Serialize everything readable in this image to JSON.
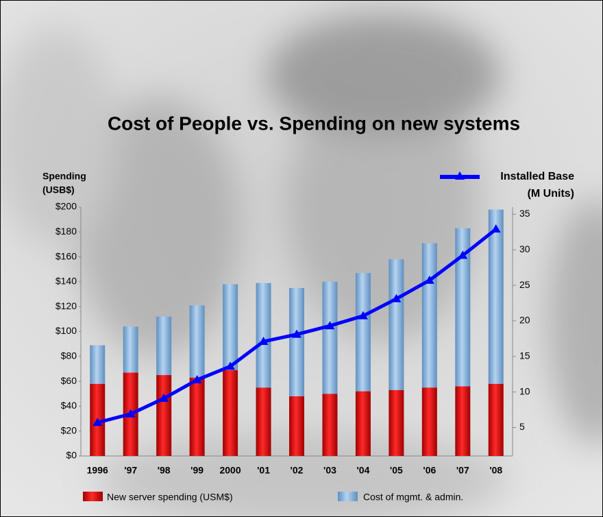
{
  "chart_data": {
    "type": "stacked-bar-line",
    "title": "Cost of People vs. Spending on new systems",
    "ylabel": [
      "Spending",
      "(USB$)"
    ],
    "y2label": [
      "Installed Base",
      "(M Units)"
    ],
    "categories": [
      "1996",
      "'97",
      "'98",
      "'99",
      "2000",
      "'01",
      "'02",
      "'03",
      "'04",
      "'05",
      "'06",
      "'07",
      "'08"
    ],
    "series": [
      {
        "name": "New server spending (USM$)",
        "color": "#e00000",
        "values": [
          58,
          67,
          65,
          63,
          69,
          55,
          48,
          50,
          52,
          53,
          55,
          56,
          58
        ]
      },
      {
        "name": "Cost of mgmt. & admin.",
        "color": "#8db4dc",
        "values": [
          31,
          37,
          47,
          58,
          69,
          84,
          87,
          90,
          95,
          105,
          116,
          127,
          140
        ]
      },
      {
        "name": "Installed Base",
        "color": "#0000ff",
        "axis": "y2",
        "type": "line",
        "values": [
          5.7,
          6.9,
          9.1,
          11.7,
          13.6,
          17.1,
          18.1,
          19.3,
          20.7,
          23.1,
          25.7,
          29.2,
          32.9
        ]
      }
    ],
    "ylim": [
      0,
      200
    ],
    "yticks": [
      {
        "value": 0,
        "label": "$0"
      },
      {
        "value": 20,
        "label": "$20"
      },
      {
        "value": 40,
        "label": "$40"
      },
      {
        "value": 60,
        "label": "$60"
      },
      {
        "value": 80,
        "label": "$80"
      },
      {
        "value": 100,
        "label": "$100"
      },
      {
        "value": 120,
        "label": "$120"
      },
      {
        "value": 140,
        "label": "$140"
      },
      {
        "value": 160,
        "label": "$160"
      },
      {
        "value": 180,
        "label": "$180"
      },
      {
        "value": 200,
        "label": "$200"
      }
    ],
    "y2lim": [
      1,
      36
    ],
    "y2ticks": [
      5,
      10,
      15,
      20,
      25,
      30,
      35
    ]
  }
}
